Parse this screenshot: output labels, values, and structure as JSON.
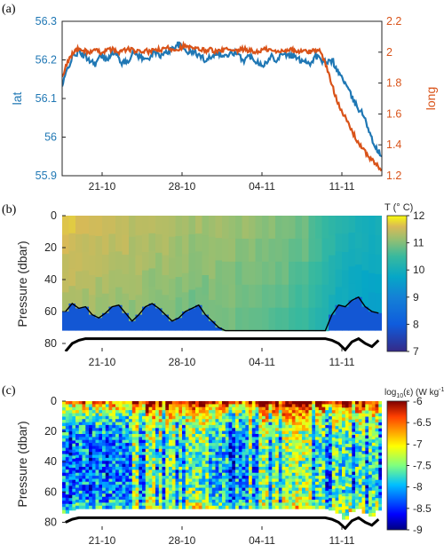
{
  "panels": {
    "a": {
      "label": "(a)"
    },
    "b": {
      "label": "(b)"
    },
    "c": {
      "label": "(c)"
    }
  },
  "colors": {
    "lat": "#1f77b4",
    "long": "#d95319",
    "bathymetry": "#000000",
    "mixed_layer_line": "#000000"
  },
  "chart_data": [
    {
      "panel": "(a)",
      "type": "line",
      "x": {
        "ticks": [
          "21-10",
          "28-10",
          "04-11",
          "11-11"
        ]
      },
      "y_left": {
        "label": "lat",
        "ylim": [
          55.9,
          56.3
        ],
        "ticks": [
          "55.9",
          "56",
          "56.1",
          "56.2",
          "56.3"
        ]
      },
      "y_right": {
        "label": "long",
        "ylim": [
          1.2,
          2.2
        ],
        "ticks": [
          "1.2",
          "1.4",
          "1.6",
          "1.8",
          "2",
          "2.2"
        ]
      },
      "series": [
        {
          "name": "lat",
          "axis": "left",
          "color": "#1f77b4",
          "values": [
            56.13,
            56.18,
            56.21,
            56.22,
            56.21,
            56.2,
            56.19,
            56.21,
            56.2,
            56.22,
            56.21,
            56.19,
            56.2,
            56.22,
            56.21,
            56.2,
            56.21,
            56.22,
            56.21,
            56.22,
            56.23,
            56.24,
            56.23,
            56.22,
            56.22,
            56.21,
            56.2,
            56.21,
            56.22,
            56.21,
            56.21,
            56.22,
            56.21,
            56.2,
            56.21,
            56.2,
            56.19,
            56.19,
            56.21,
            56.2,
            56.22,
            56.21,
            56.21,
            56.2,
            56.2,
            56.19,
            56.21,
            56.2,
            56.19,
            56.2,
            56.17,
            56.15,
            56.12,
            56.09,
            56.07,
            56.05,
            56.0,
            55.97,
            55.95
          ]
        },
        {
          "name": "long",
          "axis": "right",
          "color": "#d95319",
          "values": [
            1.83,
            1.94,
            2.0,
            2.02,
            2.01,
            2.0,
            2.01,
            2.0,
            2.01,
            2.02,
            2.0,
            2.01,
            2.02,
            2.01,
            2.0,
            2.01,
            2.0,
            2.02,
            2.01,
            2.03,
            2.02,
            2.02,
            2.04,
            2.03,
            2.02,
            2.02,
            2.01,
            2.02,
            2.0,
            2.01,
            2.02,
            2.0,
            2.01,
            2.02,
            2.01,
            2.0,
            2.01,
            2.02,
            2.01,
            2.0,
            2.01,
            2.02,
            2.01,
            2.0,
            2.01,
            2.0,
            2.02,
            2.0,
            1.9,
            1.78,
            1.68,
            1.6,
            1.53,
            1.46,
            1.4,
            1.35,
            1.31,
            1.27,
            1.24
          ]
        }
      ]
    },
    {
      "panel": "(b)",
      "type": "heatmap",
      "x": {
        "ticks": [
          "21-10",
          "28-10",
          "04-11",
          "11-11"
        ]
      },
      "y": {
        "label": "Pressure (dbar)",
        "ylim": [
          0,
          85
        ],
        "ticks": [
          "0",
          "20",
          "40",
          "60",
          "80"
        ],
        "reversed": true
      },
      "colorbar": {
        "label": "T (° C)",
        "range": [
          7,
          12
        ],
        "ticks": [
          "12",
          "11",
          "10",
          "9",
          "8",
          "7"
        ],
        "colormap": "parula"
      },
      "surface_temperature_columns": [
        11.6,
        11.65,
        11.6,
        11.55,
        11.6,
        11.5,
        11.55,
        11.5,
        11.45,
        11.5,
        11.4,
        11.45,
        11.4,
        11.35,
        11.3,
        11.35,
        11.3,
        11.25,
        11.3,
        11.2,
        11.25,
        11.2,
        11.25,
        11.2,
        11.15,
        11.2,
        11.1,
        11.15,
        11.1,
        11.05,
        11.0,
        11.05,
        10.95,
        11.0,
        10.9,
        10.85,
        10.9,
        10.7,
        10.6,
        10.5,
        10.4,
        10.3,
        10.2,
        10.15,
        10.1,
        10.05,
        10.0,
        10.0
      ],
      "cold_layer_top_dbar": [
        60,
        55,
        58,
        57,
        62,
        64,
        61,
        57,
        56,
        61,
        66,
        62,
        57,
        55,
        58,
        62,
        66,
        64,
        60,
        58,
        56,
        62,
        66,
        70,
        72,
        72,
        72,
        72,
        72,
        72,
        72,
        72,
        72,
        72,
        72,
        72,
        72,
        72,
        72,
        72,
        62,
        56,
        57,
        53,
        51,
        57,
        60,
        61
      ],
      "seafloor_dbar": [
        85,
        80,
        78,
        77,
        77,
        77,
        77,
        77,
        77,
        77,
        77,
        77,
        77,
        77,
        77,
        77,
        77,
        77,
        77,
        77,
        77,
        77,
        77,
        77,
        77,
        77,
        77,
        77,
        77,
        77,
        77,
        77,
        77,
        77,
        77,
        77,
        77,
        77,
        77,
        77,
        78,
        80,
        84,
        79,
        77,
        80,
        82,
        78
      ]
    },
    {
      "panel": "(c)",
      "type": "heatmap",
      "x": {
        "ticks": [
          "21-10",
          "28-10",
          "04-11",
          "11-11"
        ]
      },
      "y": {
        "label": "Pressure (dbar)",
        "ylim": [
          0,
          85
        ],
        "ticks": [
          "0",
          "20",
          "40",
          "60",
          "80"
        ],
        "reversed": true
      },
      "colorbar": {
        "label": "log10(ε) (W kg-1)",
        "label_main": "log",
        "label_sub": "10",
        "label_rest": "(ε) (W kg",
        "label_sup": "-1",
        "label_end": ")",
        "range": [
          -9,
          -6
        ],
        "ticks": [
          "-6",
          "-6.5",
          "-7",
          "-7.5",
          "-8",
          "-8.5",
          "-9"
        ],
        "colormap": "jet"
      },
      "seafloor_dbar": [
        80,
        78,
        77,
        77,
        77,
        77,
        77,
        77,
        77,
        77,
        77,
        77,
        77,
        77,
        77,
        77,
        77,
        77,
        77,
        77,
        77,
        77,
        77,
        77,
        77,
        77,
        77,
        77,
        77,
        77,
        77,
        77,
        77,
        77,
        77,
        77,
        77,
        77,
        77,
        77,
        78,
        80,
        84,
        79,
        77,
        80,
        82,
        78
      ]
    }
  ]
}
